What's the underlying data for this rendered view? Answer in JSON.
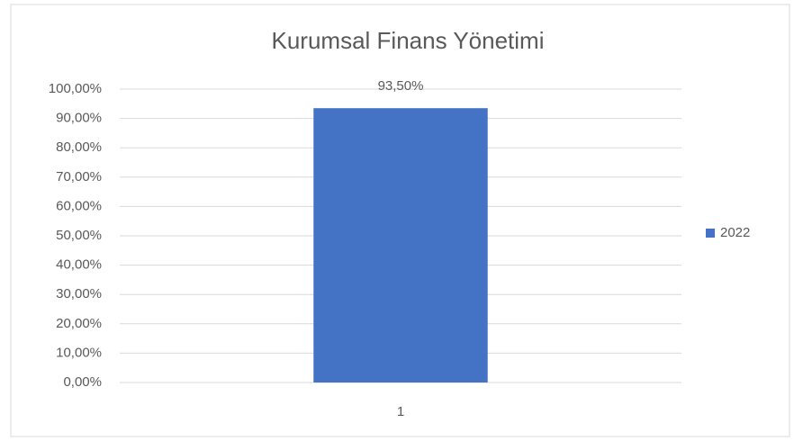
{
  "chart_data": {
    "type": "bar",
    "title": "Kurumsal Finans Yönetimi",
    "categories": [
      "1"
    ],
    "series": [
      {
        "name": "2022",
        "color": "#4472c4",
        "values": [
          93.5
        ],
        "value_labels": [
          "93,50%"
        ]
      }
    ],
    "ylim": [
      0,
      100
    ],
    "yticks": [
      {
        "value": 0,
        "label": "0,00%"
      },
      {
        "value": 10,
        "label": "10,00%"
      },
      {
        "value": 20,
        "label": "20,00%"
      },
      {
        "value": 30,
        "label": "30,00%"
      },
      {
        "value": 40,
        "label": "40,00%"
      },
      {
        "value": 50,
        "label": "50,00%"
      },
      {
        "value": 60,
        "label": "60,00%"
      },
      {
        "value": 70,
        "label": "70,00%"
      },
      {
        "value": 80,
        "label": "80,00%"
      },
      {
        "value": 90,
        "label": "90,00%"
      },
      {
        "value": 100,
        "label": "100,00%"
      }
    ],
    "grid": true,
    "legend": "right"
  }
}
